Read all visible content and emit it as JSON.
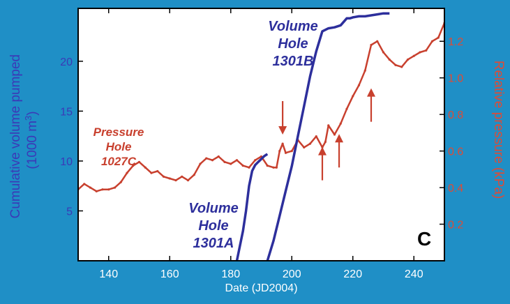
{
  "colors": {
    "background": "#1f8fc6",
    "plot_bg": "#ffffff",
    "volume": "#2d2f9c",
    "pressure": "#c8402e",
    "axis_text": "#ffffff",
    "left_axis_title": "#3b39b7",
    "right_axis_title": "#e04a34",
    "panel_letter": "#000000"
  },
  "chart_data": {
    "type": "line",
    "title": "",
    "xlabel": "Date (JD2004)",
    "ylabel_left": "Cumulative volume pumped (1000 m³)",
    "ylabel_left_lines": [
      "Cumulative volume pumped",
      "(1000 m",
      "3",
      ")"
    ],
    "ylabel_right": "Relative pressure (kPa)",
    "xlim": [
      130,
      250
    ],
    "ylim_left": [
      0,
      25.3
    ],
    "ylim_right": [
      0,
      1.38
    ],
    "x_ticks": [
      140,
      160,
      180,
      200,
      220,
      240
    ],
    "y_ticks_left": [
      5,
      10,
      15,
      20
    ],
    "y_ticks_right": [
      0.2,
      0.4,
      0.6,
      0.8,
      1.0,
      1.2
    ],
    "y_ticks_right_labels": [
      "0.2",
      "0.4",
      "0.6",
      "0.8",
      "1.0",
      "1.2"
    ],
    "grid": false,
    "panel_label": "C",
    "series": [
      {
        "name": "Pressure Hole 1027C",
        "axis": "right",
        "x": [
          130,
          132,
          134,
          136,
          138,
          140,
          142,
          144,
          146,
          148,
          150,
          152,
          154,
          156,
          158,
          160,
          162,
          164,
          166,
          168,
          170,
          172,
          174,
          176,
          178,
          180,
          182,
          184,
          186,
          188,
          190,
          192,
          194,
          195,
          196,
          197,
          198,
          200,
          202,
          204,
          206,
          208,
          210,
          211,
          212,
          214,
          216,
          218,
          220,
          222,
          224,
          226,
          228,
          230,
          232,
          234,
          236,
          238,
          240,
          242,
          244,
          246,
          248,
          250
        ],
        "y": [
          0.39,
          0.42,
          0.4,
          0.38,
          0.39,
          0.39,
          0.4,
          0.43,
          0.48,
          0.52,
          0.54,
          0.51,
          0.48,
          0.49,
          0.46,
          0.45,
          0.44,
          0.46,
          0.44,
          0.47,
          0.53,
          0.56,
          0.55,
          0.57,
          0.54,
          0.53,
          0.55,
          0.52,
          0.51,
          0.55,
          0.57,
          0.52,
          0.51,
          0.51,
          0.6,
          0.64,
          0.59,
          0.6,
          0.66,
          0.62,
          0.64,
          0.68,
          0.62,
          0.65,
          0.74,
          0.69,
          0.75,
          0.83,
          0.9,
          0.96,
          1.04,
          1.18,
          1.2,
          1.14,
          1.1,
          1.07,
          1.06,
          1.1,
          1.12,
          1.14,
          1.15,
          1.2,
          1.22,
          1.3
        ]
      },
      {
        "name": "Volume Hole 1301A",
        "axis": "left",
        "x": [
          182,
          183,
          184,
          185,
          186,
          187,
          188,
          189,
          190,
          191,
          192
        ],
        "y": [
          0,
          1.5,
          3.0,
          5.0,
          7.5,
          9.0,
          9.6,
          9.9,
          10.2,
          10.5,
          10.7
        ]
      },
      {
        "name": "Volume Hole 1301B",
        "axis": "left",
        "x": [
          192,
          194,
          196,
          198,
          200,
          202,
          204,
          206,
          208,
          210,
          212,
          214,
          216,
          218,
          219,
          220,
          222,
          224,
          226,
          228,
          230,
          232
        ],
        "y": [
          0,
          2.0,
          4.5,
          7.0,
          9.5,
          12.5,
          15.5,
          18.5,
          21.0,
          23.0,
          23.3,
          23.4,
          23.6,
          24.3,
          24.3,
          24.4,
          24.5,
          24.5,
          24.6,
          24.7,
          24.8,
          24.8
        ]
      }
    ],
    "annotations": [
      {
        "lines": [
          "Pressure",
          "Hole",
          "1027C"
        ],
        "color": "pressure"
      },
      {
        "lines": [
          "Volume",
          "Hole",
          "1301A"
        ],
        "color": "volume"
      },
      {
        "lines": [
          "Volume",
          "Hole",
          "1301B"
        ],
        "color": "volume"
      }
    ],
    "arrows": [
      {
        "x": 197,
        "y": 0.69,
        "direction": "down"
      },
      {
        "x": 210,
        "y": 0.44,
        "direction": "up"
      },
      {
        "x": 215.5,
        "y": 0.51,
        "direction": "up"
      },
      {
        "x": 226,
        "y": 0.76,
        "direction": "up"
      }
    ]
  }
}
